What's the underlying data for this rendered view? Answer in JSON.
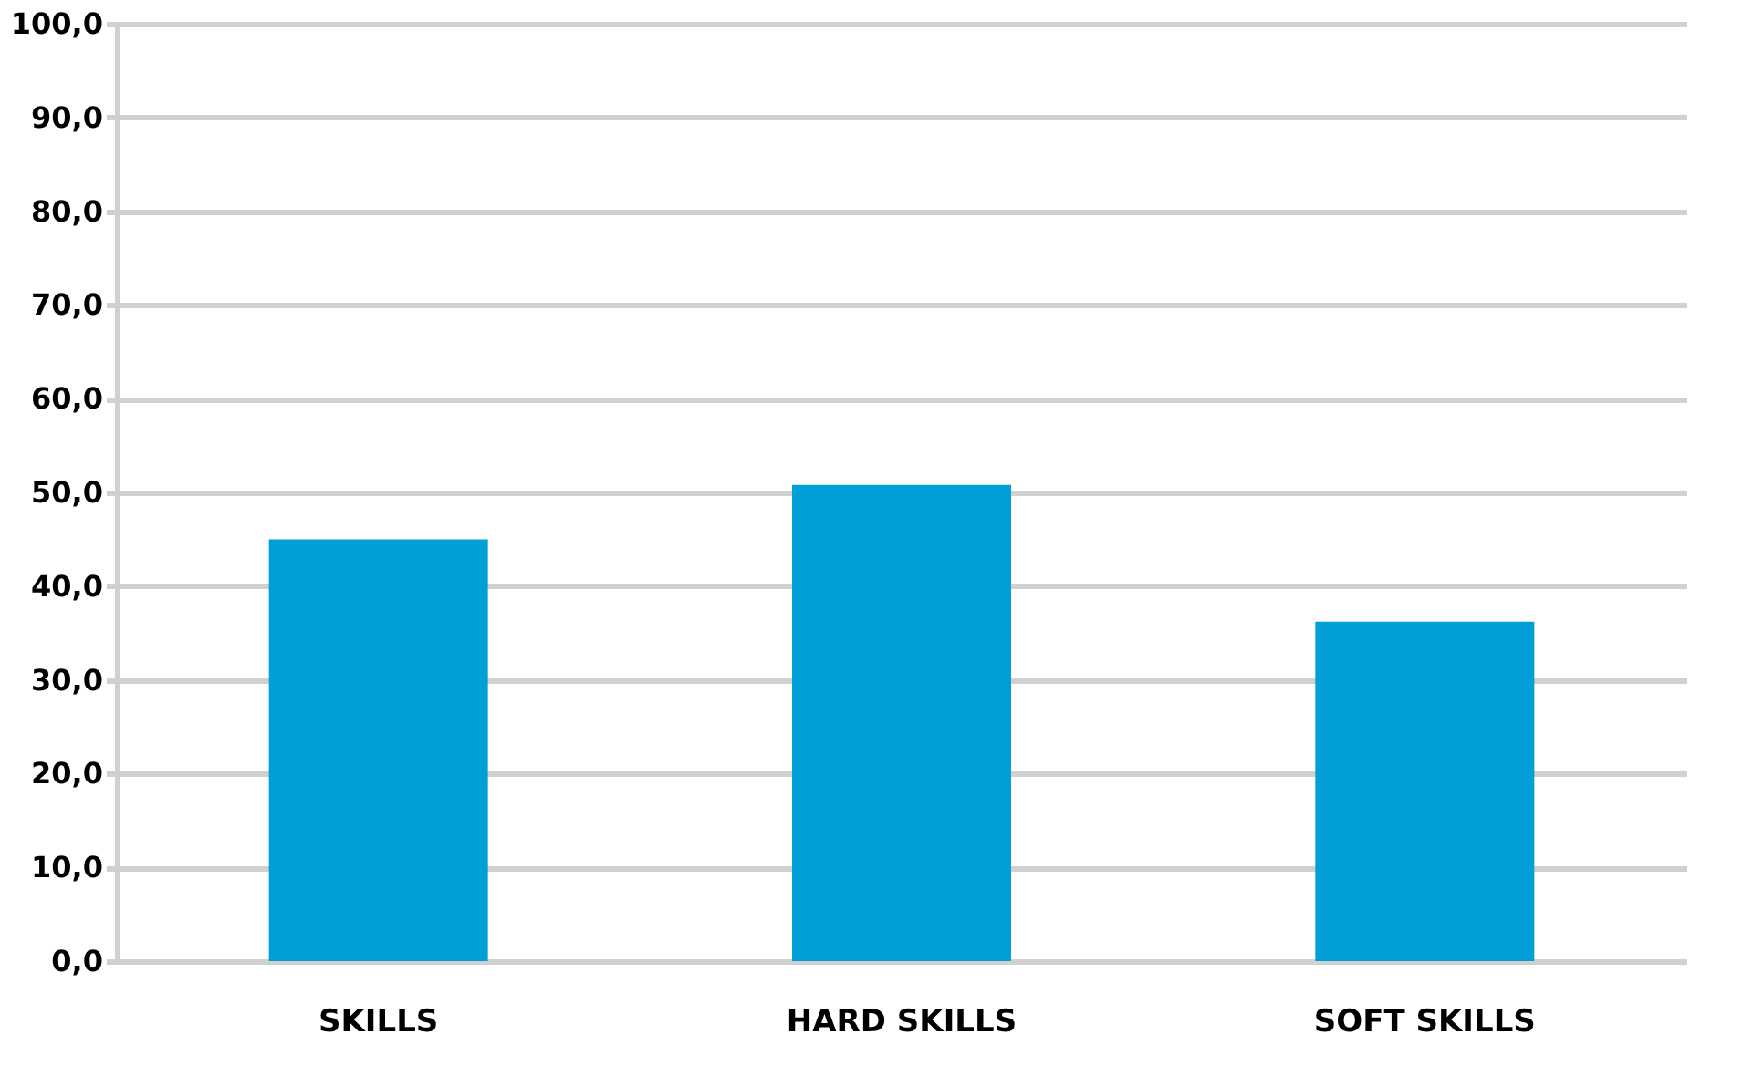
{
  "chart_data": {
    "type": "bar",
    "categories": [
      "SKILLS",
      "HARD SKILLS",
      "SOFT SKILLS"
    ],
    "values": [
      45,
      50.8,
      36.2
    ],
    "color": "#009fd7",
    "ylim": [
      0,
      100
    ],
    "yticks": [
      {
        "value": 0,
        "label": "0,0"
      },
      {
        "value": 10,
        "label": "10,0"
      },
      {
        "value": 20,
        "label": "20,0"
      },
      {
        "value": 30,
        "label": "30,0"
      },
      {
        "value": 40,
        "label": "40,0"
      },
      {
        "value": 50,
        "label": "50,0"
      },
      {
        "value": 60,
        "label": "60,0"
      },
      {
        "value": 70,
        "label": "70,0"
      },
      {
        "value": 80,
        "label": "80,0"
      },
      {
        "value": 90,
        "label": "90,0"
      },
      {
        "value": 100,
        "label": "100,0"
      }
    ],
    "grid": "y"
  }
}
